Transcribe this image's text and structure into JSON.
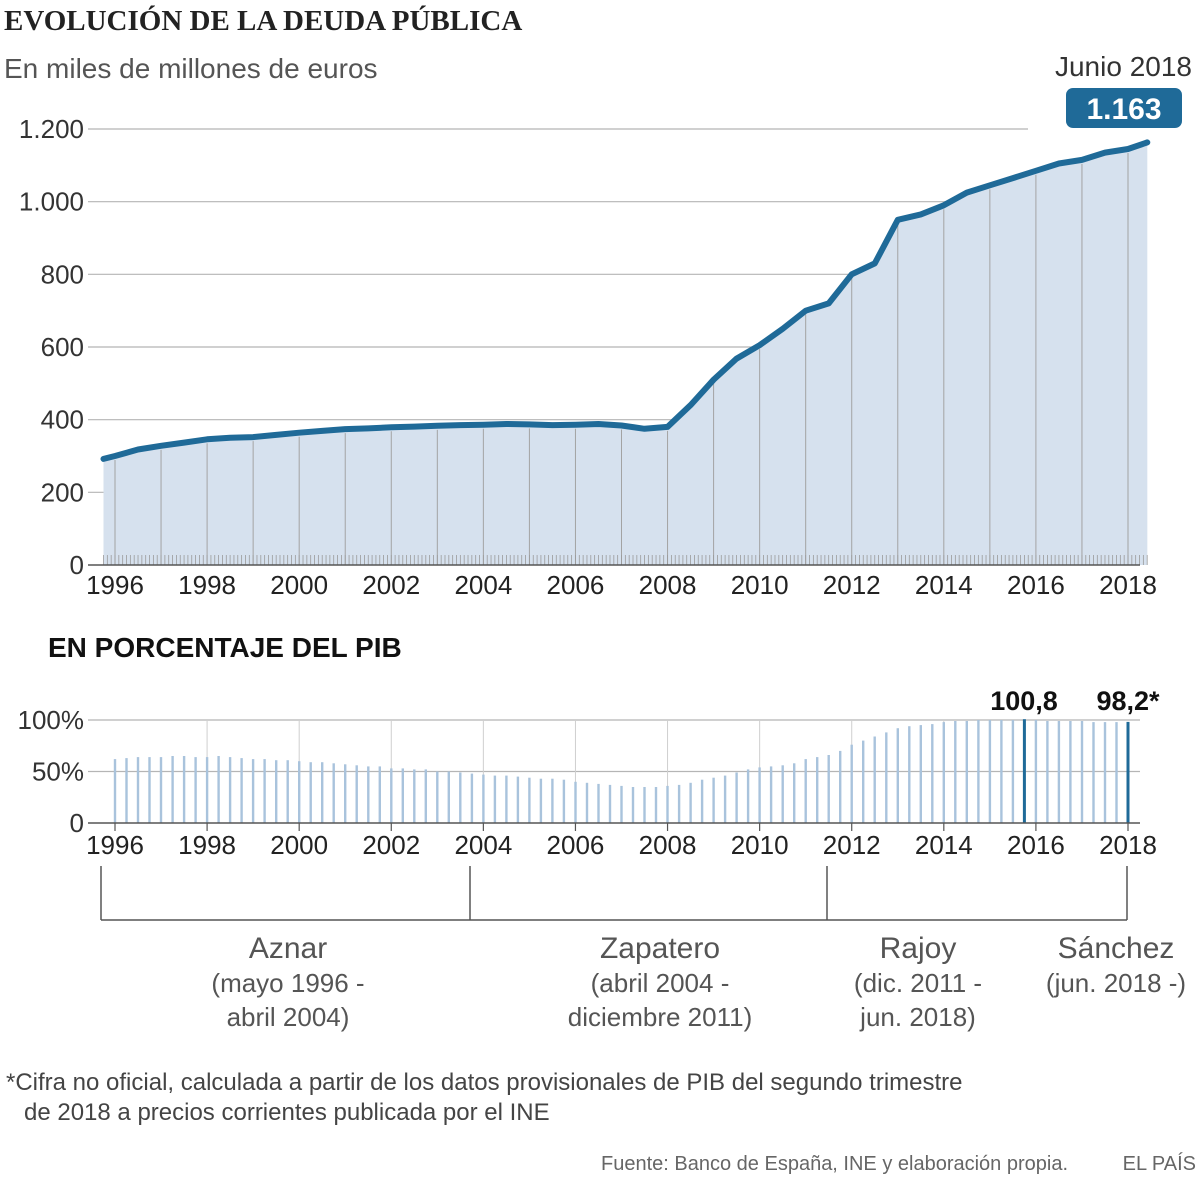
{
  "title": "EVOLUCIÓN DE LA DEUDA PÚBLICA",
  "subtitle": "En miles de millones de euros",
  "callout": {
    "label": "Junio 2018",
    "value": "1.163"
  },
  "colors": {
    "line": "#1f6a98",
    "area": "#d6e1ee",
    "grid": "#b5b5b5",
    "badge": "#1f6a98",
    "bars": "#a9c3dc",
    "bars_highlight": "#1f6a98"
  },
  "chart_data": [
    {
      "type": "area",
      "title": "EVOLUCIÓN DE LA DEUDA PÚBLICA",
      "ylabel": "En miles de millones de euros",
      "ylim": [
        0,
        1200
      ],
      "xlim": [
        1995.7,
        2018.5
      ],
      "yticks": [
        0,
        200,
        400,
        600,
        800,
        1000,
        1200
      ],
      "ytick_labels": [
        "0",
        "200",
        "400",
        "600",
        "800",
        "1.000",
        "1.200"
      ],
      "xtick_labels": [
        "1996",
        "1998",
        "2000",
        "2002",
        "2004",
        "2006",
        "2008",
        "2010",
        "2012",
        "2014",
        "2016",
        "2018"
      ],
      "x": [
        1995.75,
        1996.0,
        1996.5,
        1997.0,
        1997.5,
        1998.0,
        1998.5,
        1999.0,
        1999.5,
        2000.0,
        2000.5,
        2001.0,
        2001.5,
        2002.0,
        2002.5,
        2003.0,
        2003.5,
        2004.0,
        2004.5,
        2005.0,
        2005.5,
        2006.0,
        2006.5,
        2007.0,
        2007.5,
        2008.0,
        2008.5,
        2009.0,
        2009.5,
        2010.0,
        2010.5,
        2011.0,
        2011.5,
        2012.0,
        2012.5,
        2013.0,
        2013.5,
        2014.0,
        2014.5,
        2015.0,
        2015.5,
        2016.0,
        2016.5,
        2017.0,
        2017.5,
        2018.0,
        2018.42
      ],
      "values": [
        292,
        300,
        318,
        328,
        337,
        346,
        350,
        352,
        358,
        364,
        369,
        374,
        376,
        379,
        381,
        383,
        385,
        386,
        388,
        387,
        385,
        386,
        388,
        384,
        375,
        380,
        440,
        510,
        568,
        605,
        650,
        700,
        720,
        800,
        830,
        950,
        965,
        990,
        1025,
        1045,
        1065,
        1085,
        1105,
        1115,
        1135,
        1145,
        1163
      ]
    },
    {
      "type": "bar",
      "title": "EN PORCENTAJE DEL PIB",
      "ylim": [
        0,
        100
      ],
      "yticks": [
        0,
        50,
        100
      ],
      "ytick_labels": [
        "0",
        "50%",
        "100%"
      ],
      "xtick_labels": [
        "1996",
        "1998",
        "2000",
        "2002",
        "2004",
        "2006",
        "2008",
        "2010",
        "2012",
        "2014",
        "2016",
        "2018"
      ],
      "x": [
        1996.0,
        1996.25,
        1996.5,
        1996.75,
        1997.0,
        1997.25,
        1997.5,
        1997.75,
        1998.0,
        1998.25,
        1998.5,
        1998.75,
        1999.0,
        1999.25,
        1999.5,
        1999.75,
        2000.0,
        2000.25,
        2000.5,
        2000.75,
        2001.0,
        2001.25,
        2001.5,
        2001.75,
        2002.0,
        2002.25,
        2002.5,
        2002.75,
        2003.0,
        2003.25,
        2003.5,
        2003.75,
        2004.0,
        2004.25,
        2004.5,
        2004.75,
        2005.0,
        2005.25,
        2005.5,
        2005.75,
        2006.0,
        2006.25,
        2006.5,
        2006.75,
        2007.0,
        2007.25,
        2007.5,
        2007.75,
        2008.0,
        2008.25,
        2008.5,
        2008.75,
        2009.0,
        2009.25,
        2009.5,
        2009.75,
        2010.0,
        2010.25,
        2010.5,
        2010.75,
        2011.0,
        2011.25,
        2011.5,
        2011.75,
        2012.0,
        2012.25,
        2012.5,
        2012.75,
        2013.0,
        2013.25,
        2013.5,
        2013.75,
        2014.0,
        2014.25,
        2014.5,
        2014.75,
        2015.0,
        2015.25,
        2015.5,
        2015.75,
        2016.0,
        2016.25,
        2016.5,
        2016.75,
        2017.0,
        2017.25,
        2017.5,
        2017.75,
        2018.0
      ],
      "values": [
        62,
        63,
        64,
        64,
        64,
        65,
        65,
        64,
        64,
        65,
        64,
        63,
        62,
        62,
        61,
        61,
        60,
        59,
        59,
        58,
        57,
        56,
        55,
        55,
        53,
        53,
        52,
        52,
        50,
        50,
        49,
        48,
        47,
        46,
        46,
        45,
        44,
        43,
        43,
        42,
        40,
        39,
        38,
        37,
        36,
        35,
        35,
        35,
        36,
        37,
        39,
        42,
        44,
        46,
        49,
        52,
        54,
        55,
        56,
        58,
        62,
        64,
        66,
        70,
        76,
        80,
        84,
        88,
        92,
        94,
        95,
        96,
        98,
        99,
        99,
        100,
        100,
        100,
        100,
        100.8,
        100,
        99,
        99,
        99,
        99,
        98,
        98,
        98,
        98.2
      ],
      "highlight_values": [
        "100,8",
        "98,2*"
      ]
    }
  ],
  "section2_title": "EN PORCENTAJE DEL PIB",
  "periods": [
    {
      "name": "Aznar",
      "line1": "(mayo 1996 -",
      "line2": "abril 2004)"
    },
    {
      "name": "Zapatero",
      "line1": "(abril 2004 -",
      "line2": "diciembre 2011)"
    },
    {
      "name": "Rajoy",
      "line1": "(dic. 2011 -",
      "line2": "jun. 2018)"
    },
    {
      "name": "Sánchez",
      "line1": "(jun. 2018 -)"
    }
  ],
  "footnote": {
    "line1": "*Cifra no oficial, calculada a partir de los datos provisionales de PIB del segundo trimestre",
    "line2": "de 2018 a precios corrientes publicada por el INE"
  },
  "source": "Fuente: Banco de España, INE y elaboración propia.",
  "brand": "EL PAÍS"
}
